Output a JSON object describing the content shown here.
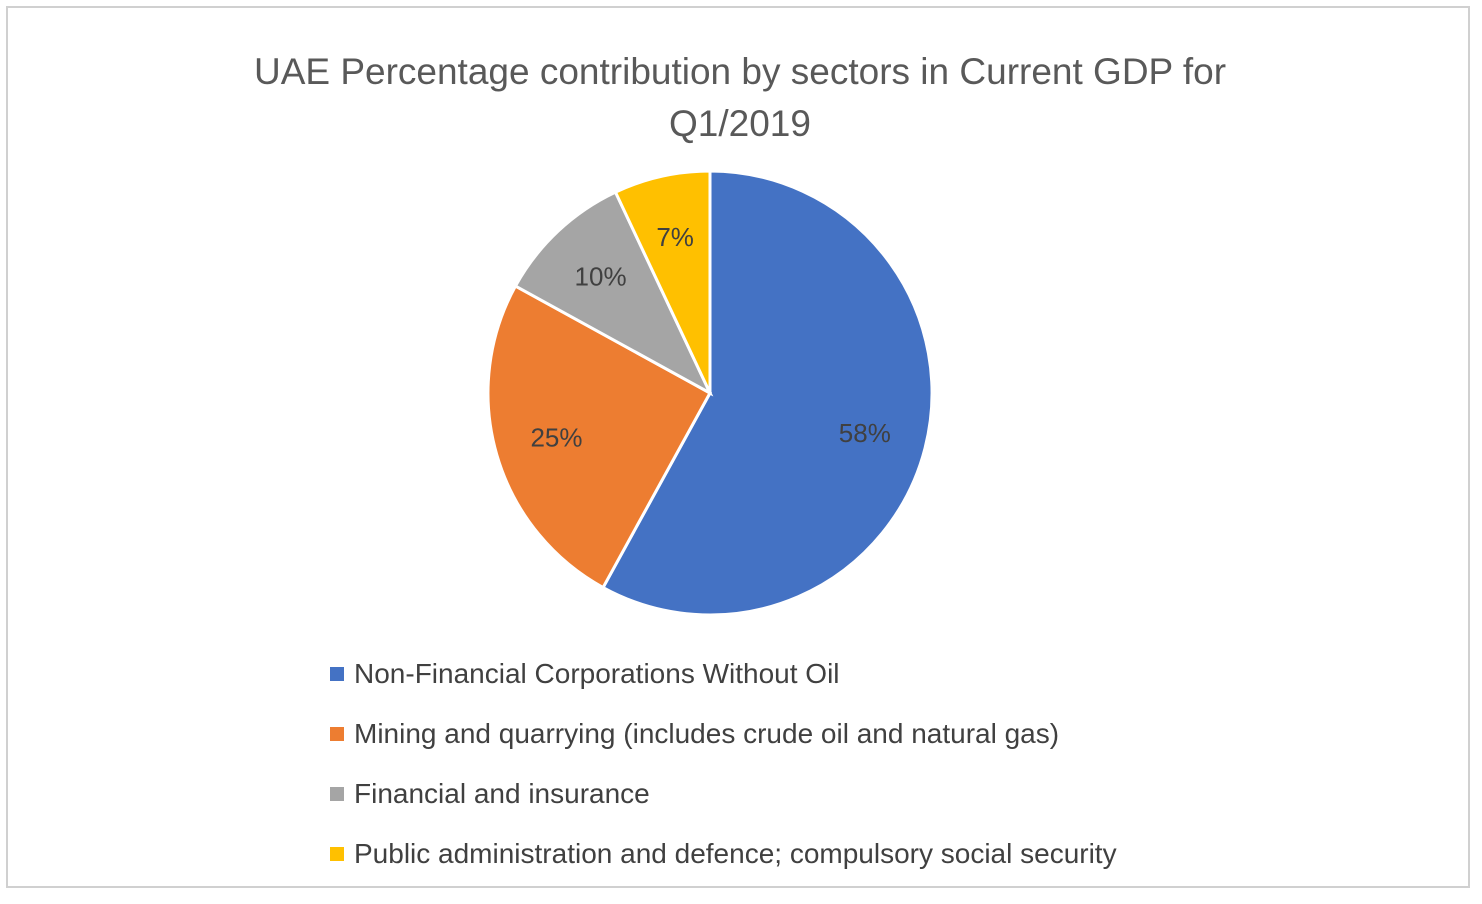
{
  "chart_data": {
    "type": "pie",
    "title": "UAE Percentage contribution by sectors in Current GDP for\nQ1/2019",
    "categories": [
      "Non-Financial Corporations Without Oil",
      "Mining and quarrying (includes crude oil and natural gas)",
      "Financial and insurance",
      "Public administration and defence; compulsory social security"
    ],
    "values": [
      58,
      25,
      10,
      7
    ],
    "data_labels": [
      "58%",
      "25%",
      "10%",
      "7%"
    ],
    "colors": [
      "#4472C4",
      "#ED7D31",
      "#A5A5A5",
      "#FFC000"
    ],
    "start_angle_deg": 0,
    "direction": "clockwise",
    "legend_position": "bottom"
  }
}
